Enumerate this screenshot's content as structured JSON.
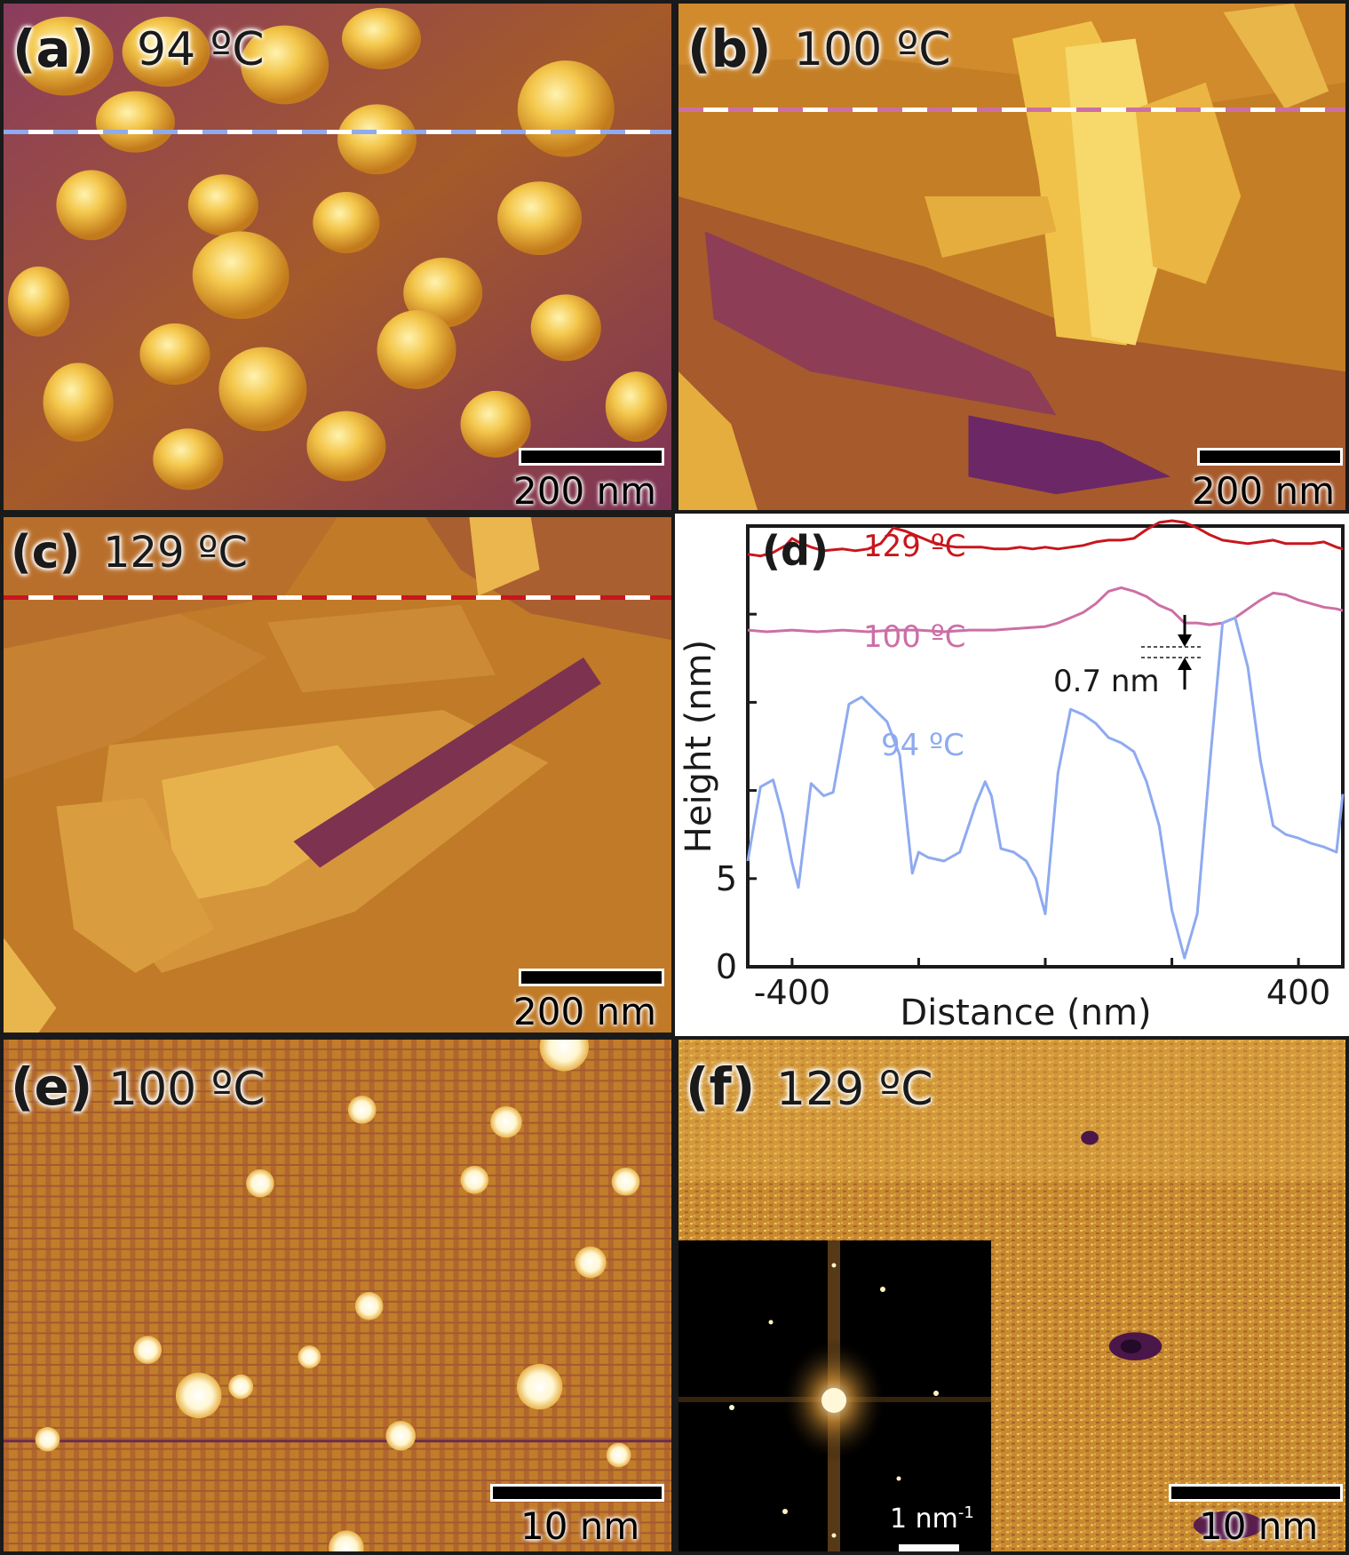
{
  "panels": {
    "a": {
      "label": "(a)",
      "temp": "94 ºC",
      "scale": "200 nm"
    },
    "b": {
      "label": "(b)",
      "temp": "100 ºC",
      "scale": "200 nm"
    },
    "c": {
      "label": "(c)",
      "temp": "129 ºC",
      "scale": "200 nm"
    },
    "d": {
      "label": "(d)"
    },
    "e": {
      "label": "(e)",
      "temp": "100 ºC",
      "scale": "10 nm"
    },
    "f": {
      "label": "(f)",
      "temp": "129 ºC",
      "scale": "10 nm",
      "inset_scale": "1 nm",
      "inset_scale_sup": "-1"
    }
  },
  "colors": {
    "line_94": "#8eaaf0",
    "line_100": "#cc6fa6",
    "line_129": "#c8161d"
  },
  "chart_data": {
    "type": "line",
    "xlabel": "Distance (nm)",
    "ylabel": "Height (nm)",
    "xlim": [
      -470,
      470
    ],
    "ylim": [
      0,
      25
    ],
    "xticks": [
      -400,
      400
    ],
    "yticks": [
      0,
      5
    ],
    "annotation": "0.7 nm",
    "series": [
      {
        "name": "129 ºC",
        "x": [
          -470,
          -450,
          -430,
          -410,
          -400,
          -390,
          -370,
          -350,
          -320,
          -300,
          -280,
          -260,
          -240,
          -220,
          -200,
          -180,
          -160,
          -140,
          -120,
          -100,
          -80,
          -60,
          -40,
          -20,
          0,
          20,
          40,
          60,
          80,
          100,
          120,
          140,
          160,
          180,
          200,
          220,
          240,
          260,
          280,
          300,
          320,
          340,
          360,
          380,
          400,
          420,
          440,
          460,
          470
        ],
        "y": [
          23.4,
          23.3,
          23.5,
          23.9,
          24.3,
          24.1,
          23.8,
          23.6,
          23.7,
          23.6,
          23.7,
          24.0,
          24.9,
          24.7,
          24.4,
          24.1,
          23.9,
          23.8,
          23.8,
          23.8,
          23.7,
          23.7,
          23.8,
          23.7,
          23.8,
          23.7,
          23.8,
          23.9,
          24.1,
          24.2,
          24.2,
          24.3,
          24.8,
          25.2,
          25.3,
          25.2,
          24.9,
          24.5,
          24.2,
          24.1,
          24.0,
          24.1,
          24.2,
          24.0,
          24.0,
          24.0,
          24.1,
          23.8,
          23.7
        ]
      },
      {
        "name": "100 ºC",
        "x": [
          -470,
          -440,
          -400,
          -360,
          -320,
          -280,
          -240,
          -200,
          -160,
          -120,
          -80,
          -40,
          0,
          20,
          40,
          60,
          80,
          100,
          120,
          140,
          160,
          180,
          200,
          220,
          240,
          260,
          280,
          300,
          320,
          340,
          360,
          380,
          400,
          420,
          440,
          460,
          470
        ],
        "y": [
          19.1,
          19.0,
          19.1,
          19.0,
          19.1,
          19.0,
          19.1,
          19.1,
          19.0,
          19.1,
          19.1,
          19.2,
          19.3,
          19.5,
          19.8,
          20.1,
          20.6,
          21.3,
          21.5,
          21.3,
          21.0,
          20.5,
          20.2,
          19.5,
          19.5,
          19.4,
          19.5,
          19.8,
          20.3,
          20.8,
          21.2,
          21.1,
          20.8,
          20.6,
          20.4,
          20.3,
          20.2
        ]
      },
      {
        "name": "94 ºC",
        "x": [
          -470,
          -450,
          -430,
          -415,
          -400,
          -390,
          -370,
          -350,
          -335,
          -310,
          -290,
          -270,
          -250,
          -230,
          -210,
          -200,
          -185,
          -160,
          -135,
          -110,
          -95,
          -85,
          -70,
          -50,
          -30,
          -15,
          0,
          20,
          40,
          60,
          80,
          100,
          120,
          140,
          160,
          180,
          200,
          220,
          240,
          260,
          280,
          300,
          320,
          340,
          360,
          380,
          400,
          420,
          440,
          460,
          470
        ],
        "y": [
          6.0,
          10.2,
          10.6,
          8.6,
          5.9,
          4.5,
          10.4,
          9.7,
          9.9,
          14.9,
          15.3,
          14.6,
          13.9,
          12.0,
          5.3,
          6.5,
          6.2,
          6.0,
          6.5,
          9.2,
          10.5,
          9.7,
          6.7,
          6.5,
          6.0,
          5.0,
          3.0,
          11.0,
          14.6,
          14.3,
          13.8,
          13.0,
          12.7,
          12.2,
          10.5,
          8.0,
          3.2,
          0.5,
          3.0,
          11.5,
          19.5,
          19.8,
          17.0,
          11.7,
          8.0,
          7.5,
          7.3,
          7.0,
          6.8,
          6.5,
          9.8
        ]
      }
    ]
  }
}
